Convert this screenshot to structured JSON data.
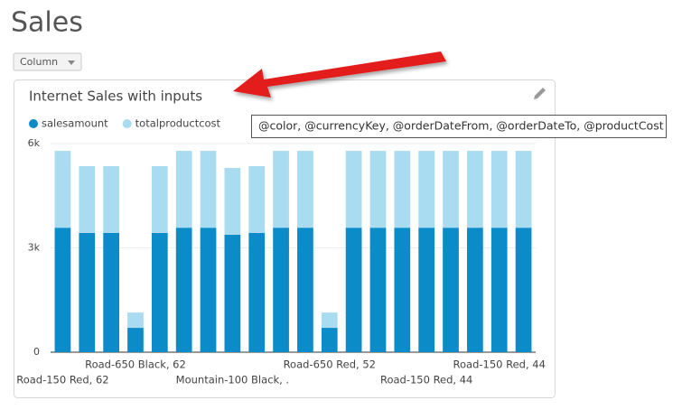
{
  "page": {
    "title": "Sales",
    "chart_type_button": "Column",
    "tooltip": "@color, @currencyKey, @orderDateFrom, @orderDateTo, @productCost"
  },
  "chart_data": {
    "type": "stacked_bar",
    "title": "Internet Sales with inputs",
    "categories": [
      "Road-150 Red, 62",
      null,
      null,
      "Road-650 Black, 62",
      null,
      null,
      null,
      "Mountain-100 Black, .",
      null,
      null,
      null,
      "Road-650 Red, 52",
      null,
      null,
      null,
      "Road-150 Red, 44",
      null,
      null,
      "Road-150 Red, 44",
      null
    ],
    "series": [
      {
        "name": "salesamount",
        "color": "#0b8bc7",
        "values": [
          3580,
          3430,
          3430,
          700,
          3430,
          3580,
          3580,
          3380,
          3430,
          3580,
          3580,
          700,
          3580,
          3580,
          3580,
          3580,
          3580,
          3580,
          3580,
          3580
        ]
      },
      {
        "name": "totalproductcost",
        "color": "#a9dbf1",
        "values": [
          2210,
          1920,
          1920,
          440,
          1920,
          2210,
          2210,
          1920,
          1920,
          2210,
          2210,
          440,
          2210,
          2210,
          2210,
          2210,
          2210,
          2210,
          2210,
          2210
        ]
      }
    ],
    "ylim": [
      0,
      6000
    ],
    "yticks": [
      0,
      {
        "value": 3000,
        "label": "3k"
      },
      {
        "value": 6000,
        "label": "6k"
      }
    ],
    "grid": true
  }
}
